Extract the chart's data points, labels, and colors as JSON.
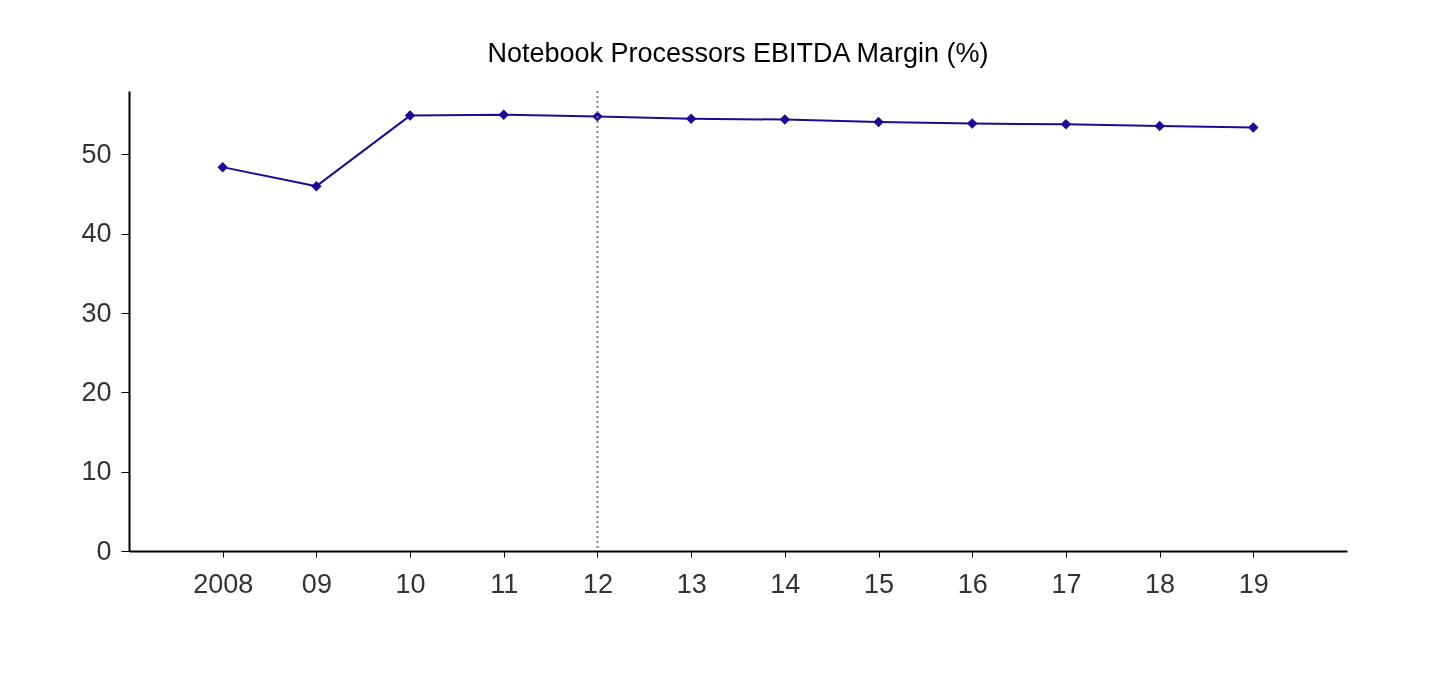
{
  "chart_data": {
    "type": "line",
    "title": "Notebook Processors EBITDA Margin (%)",
    "categories": [
      "2008",
      "09",
      "10",
      "11",
      "12",
      "13",
      "14",
      "15",
      "16",
      "17",
      "18",
      "19"
    ],
    "series": [
      {
        "color": "#1f0a96",
        "values": [
          48.4,
          46.0,
          54.9,
          55.0,
          54.8,
          54.5,
          54.4,
          54.1,
          53.9,
          53.8,
          53.6,
          53.4
        ]
      }
    ],
    "ylim": [
      0,
      58
    ],
    "yticks": [
      0,
      10,
      20,
      30,
      40,
      50
    ],
    "grid": false,
    "legend": false,
    "marker": "diamond",
    "line_style": "solid",
    "ref_lines": [
      {
        "axis": "x",
        "value": "12",
        "color": "#808080",
        "line_style": "dotted"
      }
    ]
  }
}
